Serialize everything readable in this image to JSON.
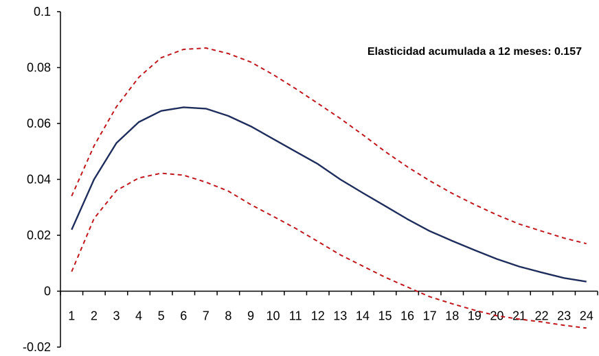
{
  "chart_data": {
    "type": "line",
    "x": [
      1,
      2,
      3,
      4,
      5,
      6,
      7,
      8,
      9,
      10,
      11,
      12,
      13,
      14,
      15,
      16,
      17,
      18,
      19,
      20,
      21,
      22,
      23,
      24
    ],
    "series": [
      {
        "role": "estimate",
        "color": "#1f2d5c",
        "style": "solid",
        "values": [
          0.022,
          0.04,
          0.053,
          0.0605,
          0.0645,
          0.0658,
          0.0653,
          0.0627,
          0.059,
          0.0545,
          0.05,
          0.0455,
          0.04,
          0.0352,
          0.0305,
          0.0258,
          0.0215,
          0.018,
          0.0147,
          0.0115,
          0.0088,
          0.0067,
          0.0047,
          0.0034
        ]
      },
      {
        "role": "upper-band",
        "color": "#c0161c",
        "style": "dashed",
        "values": [
          0.034,
          0.052,
          0.066,
          0.0765,
          0.0835,
          0.0865,
          0.087,
          0.085,
          0.082,
          0.0775,
          0.0725,
          0.0672,
          0.0618,
          0.056,
          0.05,
          0.0445,
          0.0395,
          0.035,
          0.031,
          0.0273,
          0.024,
          0.0215,
          0.019,
          0.017
        ]
      },
      {
        "role": "lower-band",
        "color": "#c0161c",
        "style": "dashed",
        "values": [
          0.007,
          0.026,
          0.036,
          0.0405,
          0.0422,
          0.0415,
          0.039,
          0.0358,
          0.031,
          0.0268,
          0.0225,
          0.0178,
          0.013,
          0.009,
          0.005,
          0.0015,
          -0.002,
          -0.0045,
          -0.0068,
          -0.0088,
          -0.01,
          -0.011,
          -0.0122,
          -0.0132
        ]
      }
    ],
    "y_ticks": [
      "-0.02",
      "0",
      "0.02",
      "0.04",
      "0.06",
      "0.08",
      "0.1"
    ],
    "x_ticks": [
      "1",
      "2",
      "3",
      "4",
      "5",
      "6",
      "7",
      "8",
      "9",
      "10",
      "11",
      "12",
      "13",
      "14",
      "15",
      "16",
      "17",
      "18",
      "19",
      "20",
      "21",
      "22",
      "23",
      "24"
    ],
    "ylim": [
      -0.02,
      0.1
    ],
    "xlim": [
      0.5,
      24.5
    ],
    "annotation": "Elasticidad  acumulada a 12 meses: 0.157",
    "grid": false,
    "legend": "none",
    "title": "",
    "xlabel": "",
    "ylabel": ""
  }
}
